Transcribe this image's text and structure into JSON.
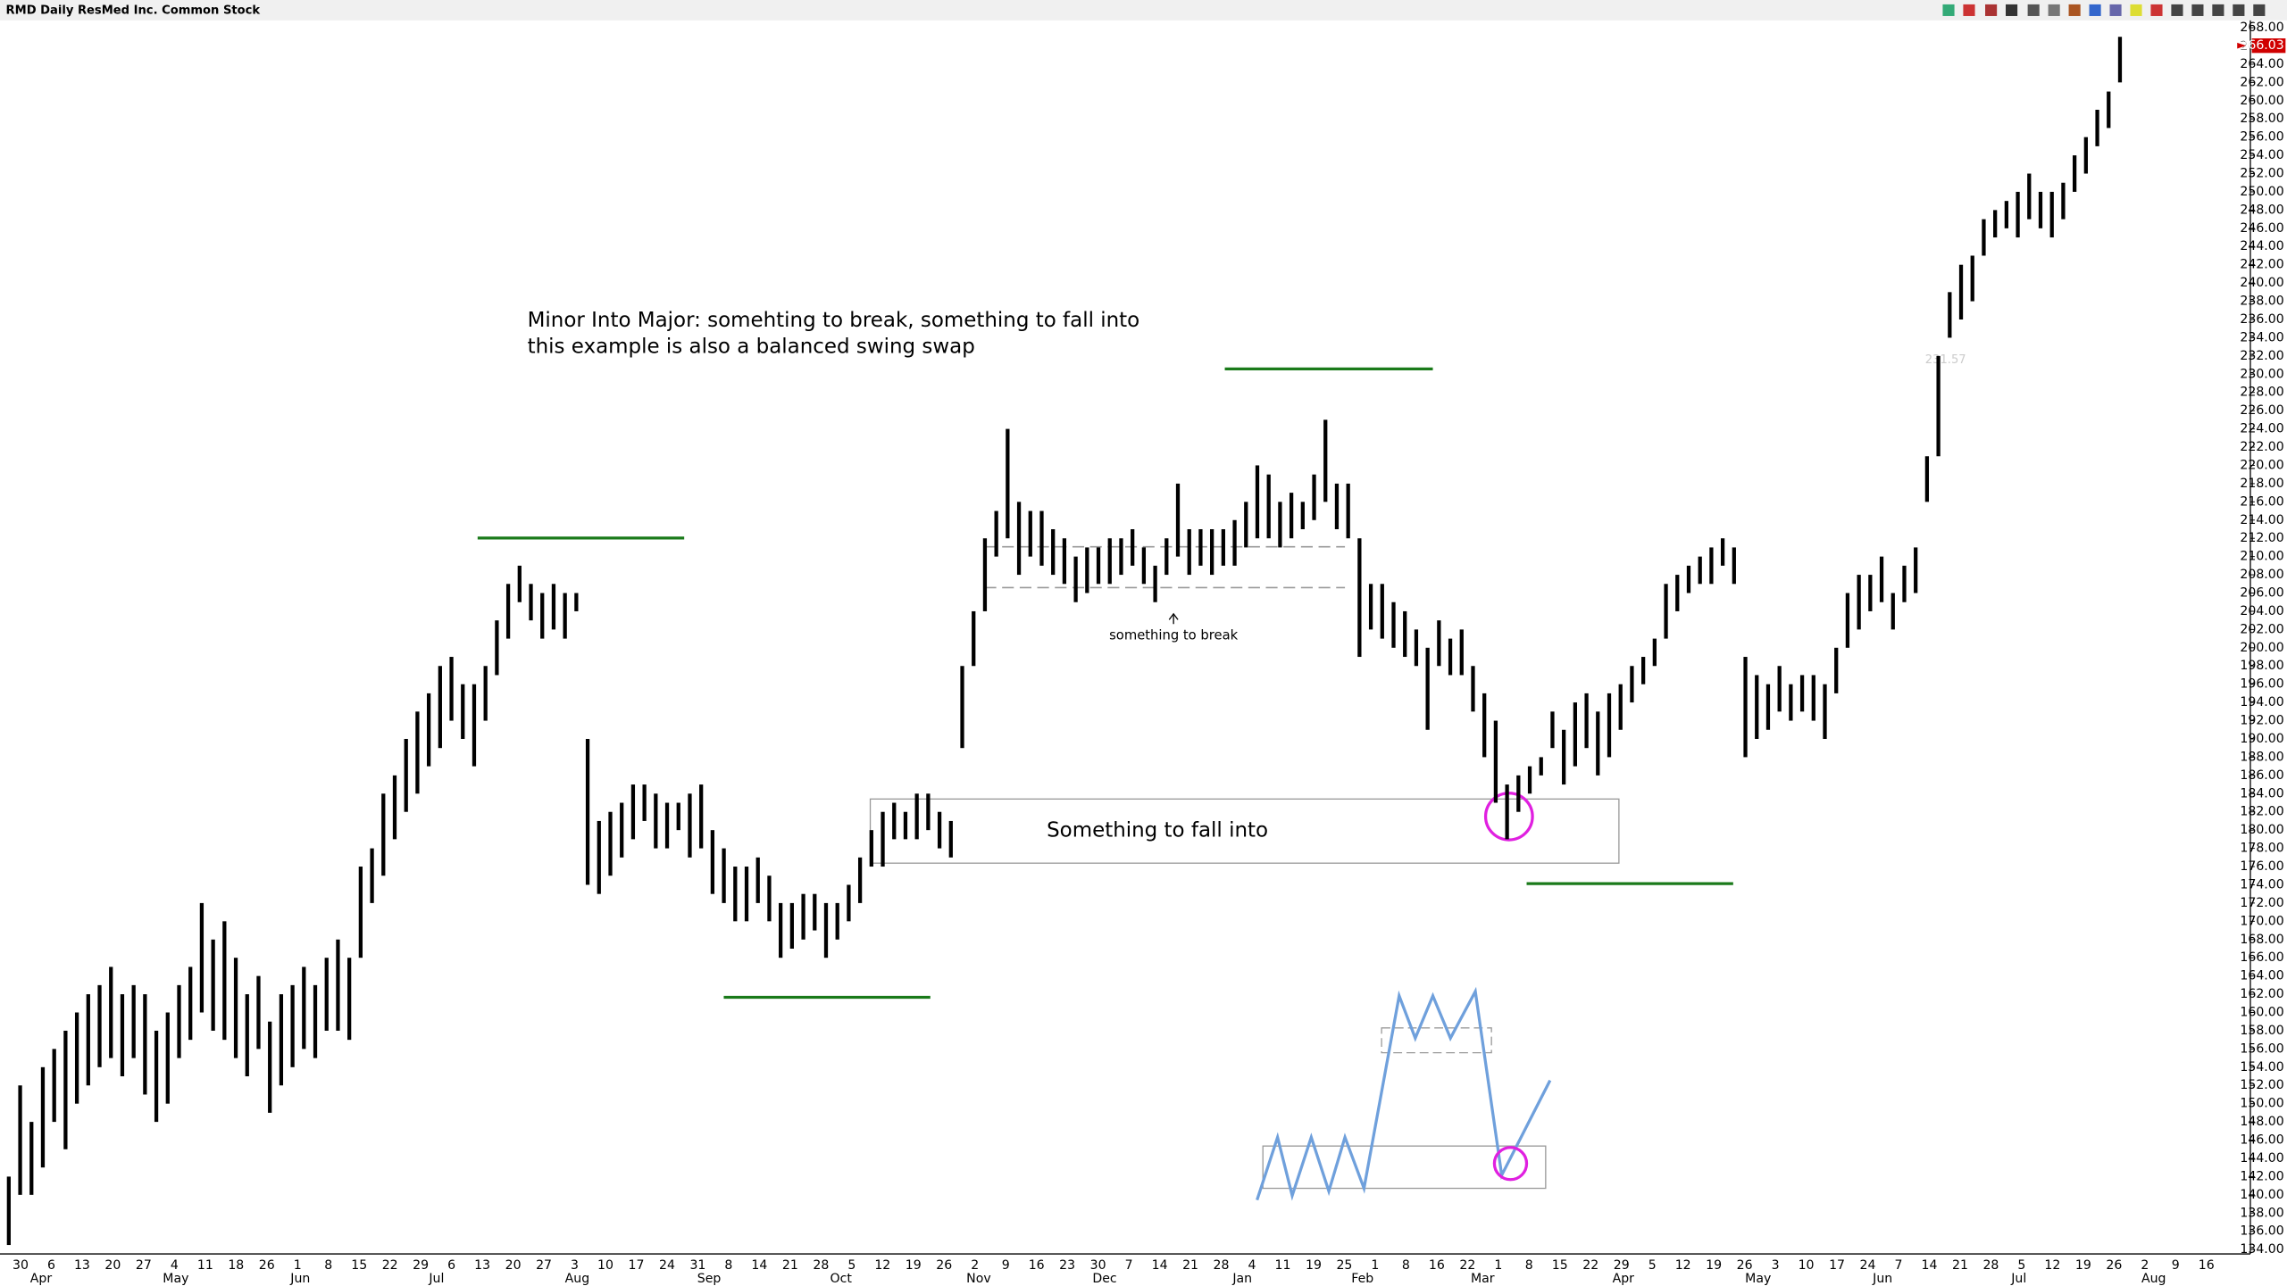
{
  "chart_data": {
    "type": "ohlc",
    "title": "RMD Daily ResMed Inc. Common Stock",
    "annotations": [
      "Minor Into Major: somehting to break, something to fall into",
      "this example is also a balanced swing swap",
      "something to break",
      "Something to fall into"
    ],
    "faint_label": "231.57",
    "last_price": 266.03,
    "color": "#000000",
    "ylim": [
      134,
      268
    ],
    "yticks": [
      {
        "value": 134,
        "label": "134.00"
      },
      {
        "value": 136,
        "label": "136.00"
      },
      {
        "value": 138,
        "label": "138.00"
      },
      {
        "value": 140,
        "label": "140.00"
      },
      {
        "value": 142,
        "label": "142.00"
      },
      {
        "value": 144,
        "label": "144.00"
      },
      {
        "value": 146,
        "label": "146.00"
      },
      {
        "value": 148,
        "label": "148.00"
      },
      {
        "value": 150,
        "label": "150.00"
      },
      {
        "value": 152,
        "label": "152.00"
      },
      {
        "value": 154,
        "label": "154.00"
      },
      {
        "value": 156,
        "label": "156.00"
      },
      {
        "value": 158,
        "label": "158.00"
      },
      {
        "value": 160,
        "label": "160.00"
      },
      {
        "value": 162,
        "label": "162.00"
      },
      {
        "value": 164,
        "label": "164.00"
      },
      {
        "value": 166,
        "label": "166.00"
      },
      {
        "value": 168,
        "label": "168.00"
      },
      {
        "value": 170,
        "label": "170.00"
      },
      {
        "value": 172,
        "label": "172.00"
      },
      {
        "value": 174,
        "label": "174.00"
      },
      {
        "value": 176,
        "label": "176.00"
      },
      {
        "value": 178,
        "label": "178.00"
      },
      {
        "value": 180,
        "label": "180.00"
      },
      {
        "value": 182,
        "label": "182.00"
      },
      {
        "value": 184,
        "label": "184.00"
      },
      {
        "value": 186,
        "label": "186.00"
      },
      {
        "value": 188,
        "label": "188.00"
      },
      {
        "value": 190,
        "label": "190.00"
      },
      {
        "value": 192,
        "label": "192.00"
      },
      {
        "value": 194,
        "label": "194.00"
      },
      {
        "value": 196,
        "label": "196.00"
      },
      {
        "value": 198,
        "label": "198.00"
      },
      {
        "value": 200,
        "label": "200.00"
      },
      {
        "value": 202,
        "label": "202.00"
      },
      {
        "value": 204,
        "label": "204.00"
      },
      {
        "value": 206,
        "label": "206.00"
      },
      {
        "value": 208,
        "label": "208.00"
      },
      {
        "value": 210,
        "label": "210.00"
      },
      {
        "value": 212,
        "label": "212.00"
      },
      {
        "value": 214,
        "label": "214.00"
      },
      {
        "value": 216,
        "label": "216.00"
      },
      {
        "value": 218,
        "label": "218.00"
      },
      {
        "value": 220,
        "label": "220.00"
      },
      {
        "value": 222,
        "label": "222.00"
      },
      {
        "value": 224,
        "label": "224.00"
      },
      {
        "value": 226,
        "label": "226.00"
      },
      {
        "value": 228,
        "label": "228.00"
      },
      {
        "value": 230,
        "label": "230.00"
      },
      {
        "value": 232,
        "label": "232.00"
      },
      {
        "value": 234,
        "label": "234.00"
      },
      {
        "value": 236,
        "label": "236.00"
      },
      {
        "value": 238,
        "label": "238.00"
      },
      {
        "value": 240,
        "label": "240.00"
      },
      {
        "value": 242,
        "label": "242.00"
      },
      {
        "value": 244,
        "label": "244.00"
      },
      {
        "value": 246,
        "label": "246.00"
      },
      {
        "value": 248,
        "label": "248.00"
      },
      {
        "value": 250,
        "label": "250.00"
      },
      {
        "value": 252,
        "label": "252.00"
      },
      {
        "value": 254,
        "label": "254.00"
      },
      {
        "value": 256,
        "label": "256.00"
      },
      {
        "value": 258,
        "label": "258.00"
      },
      {
        "value": 260,
        "label": "260.00"
      },
      {
        "value": 262,
        "label": "262.00"
      },
      {
        "value": 264,
        "label": "264.00"
      },
      {
        "value": 266,
        "label": "266.00"
      },
      {
        "value": 268,
        "label": "268.00"
      }
    ],
    "days": [
      "30",
      "6",
      "13",
      "20",
      "27",
      "4",
      "11",
      "18",
      "26",
      "1",
      "8",
      "15",
      "22",
      "29",
      "6",
      "13",
      "20",
      "27",
      "3",
      "10",
      "17",
      "24",
      "31",
      "8",
      "14",
      "21",
      "28",
      "5",
      "12",
      "19",
      "26",
      "2",
      "9",
      "16",
      "23",
      "30",
      "7",
      "14",
      "21",
      "28",
      "4",
      "11",
      "19",
      "25",
      "1",
      "8",
      "16",
      "22",
      "1",
      "8",
      "15",
      "22",
      "29",
      "5",
      "12",
      "19",
      "26",
      "3",
      "10",
      "17",
      "24",
      "7",
      "14",
      "21",
      "28",
      "5",
      "12",
      "19",
      "26",
      "2",
      "9",
      "16"
    ],
    "months": [
      "Apr",
      "May",
      "Jun",
      "Jul",
      "Aug",
      "Sep",
      "Oct",
      "Nov",
      "Dec",
      "Jan",
      "Feb",
      "Mar",
      "Apr",
      "May",
      "Jun",
      "Jul",
      "Aug"
    ],
    "low": [
      134.5,
      140,
      140,
      143,
      148,
      145,
      150,
      152,
      154,
      155,
      153,
      155,
      151,
      148,
      150,
      155,
      157,
      160,
      158,
      157,
      155,
      153,
      156,
      149,
      152,
      154,
      156,
      155,
      158,
      158,
      157,
      166,
      172,
      175,
      179,
      182,
      184,
      187,
      189,
      192,
      190,
      187,
      192,
      197,
      201,
      205,
      203,
      201,
      202,
      201,
      204,
      174,
      173,
      175,
      177,
      179,
      181,
      178,
      178,
      180,
      177,
      178,
      173,
      172,
      170,
      170,
      172,
      170,
      166,
      167,
      168,
      169,
      166,
      168,
      170,
      172,
      176,
      176,
      179,
      179,
      179,
      180,
      178,
      177,
      189,
      198,
      204,
      210,
      212,
      208,
      210,
      209,
      208,
      207,
      205,
      206,
      207,
      207,
      208,
      209,
      207,
      205,
      208,
      210,
      208,
      209,
      208,
      209,
      209,
      211,
      212,
      212,
      211,
      212,
      213,
      214,
      216,
      213,
      212,
      199,
      202,
      201,
      200,
      199,
      198,
      191,
      198,
      197,
      197,
      193,
      188,
      183,
      179,
      182,
      184,
      186,
      189,
      185,
      187,
      189,
      186,
      188,
      191,
      194,
      196,
      198,
      201,
      204,
      206,
      207,
      207,
      209,
      207,
      188,
      190,
      191,
      193,
      192,
      193,
      192,
      190,
      195,
      200,
      202,
      204,
      205,
      202,
      205,
      206,
      216,
      221,
      234,
      236,
      238,
      243,
      245,
      246,
      245,
      247,
      246,
      245,
      247,
      250,
      252,
      255,
      257,
      262
    ],
    "high": [
      142,
      152,
      148,
      154,
      156,
      158,
      160,
      162,
      163,
      165,
      162,
      163,
      162,
      158,
      160,
      163,
      165,
      172,
      168,
      170,
      166,
      162,
      164,
      159,
      162,
      163,
      165,
      163,
      166,
      168,
      166,
      176,
      178,
      184,
      186,
      190,
      193,
      195,
      198,
      199,
      196,
      196,
      198,
      203,
      207,
      209,
      207,
      206,
      207,
      206,
      206,
      190,
      181,
      182,
      183,
      185,
      185,
      184,
      183,
      183,
      184,
      185,
      180,
      178,
      176,
      176,
      177,
      175,
      172,
      172,
      173,
      173,
      172,
      172,
      174,
      177,
      180,
      182,
      183,
      182,
      184,
      184,
      182,
      181,
      198,
      204,
      212,
      215,
      224,
      216,
      215,
      215,
      213,
      212,
      210,
      211,
      211,
      212,
      212,
      213,
      211,
      209,
      212,
      218,
      213,
      213,
      213,
      213,
      214,
      216,
      220,
      219,
      216,
      217,
      216,
      219,
      225,
      218,
      218,
      212,
      207,
      207,
      205,
      204,
      202,
      200,
      203,
      201,
      202,
      198,
      195,
      192,
      185,
      186,
      187,
      188,
      193,
      191,
      194,
      195,
      193,
      195,
      196,
      198,
      199,
      201,
      207,
      208,
      209,
      210,
      211,
      212,
      211,
      199,
      197,
      196,
      198,
      196,
      197,
      197,
      196,
      200,
      206,
      208,
      208,
      210,
      206,
      209,
      211,
      221,
      232,
      239,
      242,
      243,
      247,
      248,
      249,
      250,
      252,
      250,
      250,
      251,
      254,
      256,
      259,
      261,
      267
    ]
  }
}
